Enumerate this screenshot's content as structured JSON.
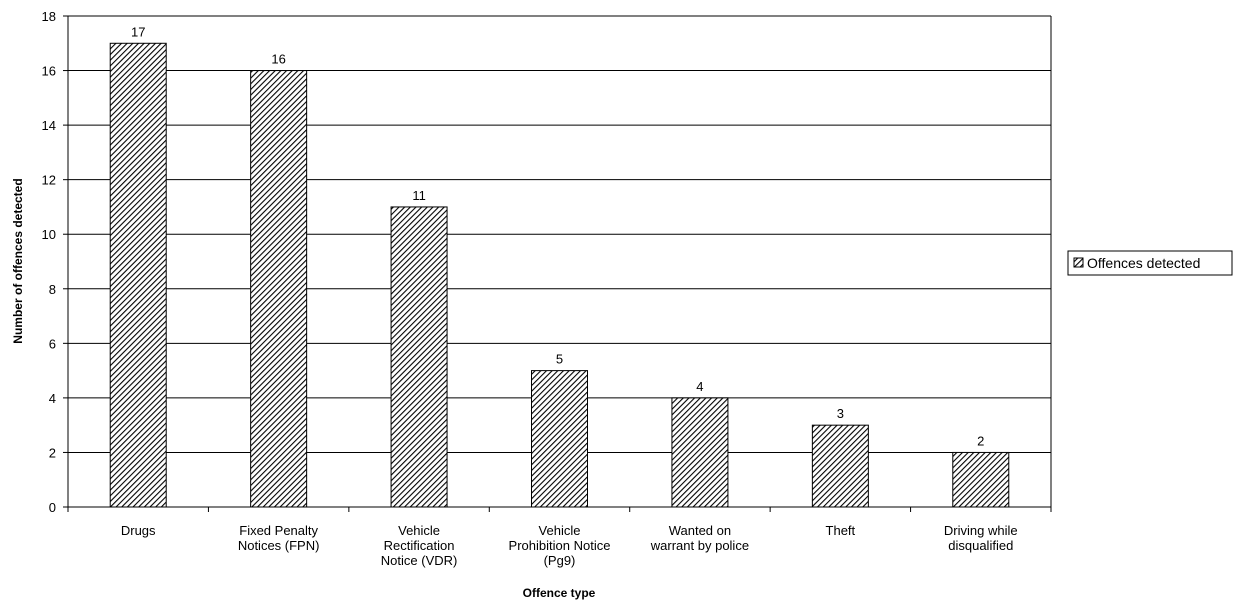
{
  "chart_data": {
    "type": "bar",
    "categories": [
      [
        "Drugs"
      ],
      [
        "Fixed Penalty",
        "Notices (FPN)"
      ],
      [
        "Vehicle",
        "Rectification",
        "Notice (VDR)"
      ],
      [
        "Vehicle",
        "Prohibition Notice",
        "(Pg9)"
      ],
      [
        "Wanted on",
        "warrant by police"
      ],
      [
        "Theft"
      ],
      [
        "Driving while",
        "disqualified"
      ]
    ],
    "series": [
      {
        "name": "Offences detected",
        "values": [
          17,
          16,
          11,
          5,
          4,
          3,
          2
        ]
      }
    ],
    "data_labels": [
      "17",
      "16",
      "11",
      "5",
      "4",
      "3",
      "2"
    ],
    "xlabel": "Offence type",
    "ylabel": "Number of offences detected",
    "ylim": [
      0,
      18
    ],
    "yticks": [
      0,
      2,
      4,
      6,
      8,
      10,
      12,
      14,
      16,
      18
    ],
    "grid": true,
    "legend_position": "right",
    "bar_fill": "diagonal-hatch",
    "colors": {
      "bar_stroke": "#000000",
      "hatch": "#000000",
      "grid": "#000000"
    }
  }
}
